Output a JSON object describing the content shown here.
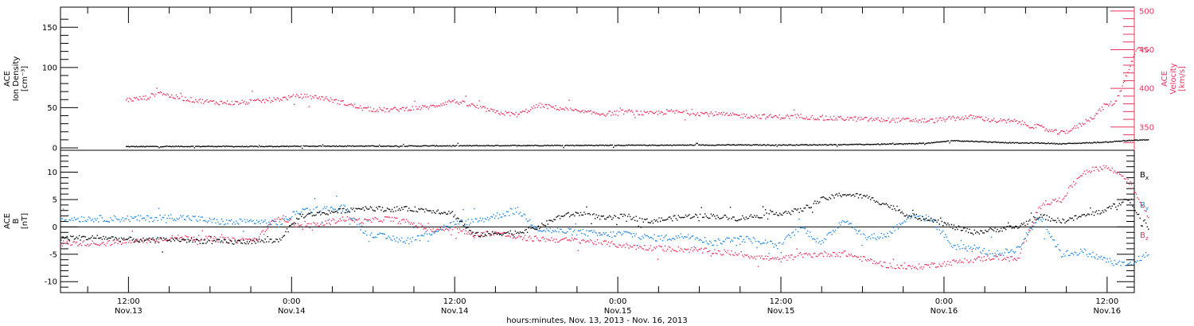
{
  "chart_data": [
    {
      "type": "scatter",
      "panel": "top",
      "ylabel_left": [
        "ACE",
        "Ion Density",
        "[cm⁻³]"
      ],
      "ylabel_right": [
        "ACE",
        "Velocity",
        "[km/s]"
      ],
      "ylim_left": [
        -3,
        175
      ],
      "ylim_right": [
        320,
        505
      ],
      "yticks_left": [
        0,
        50,
        100,
        150
      ],
      "yticks_right": [
        350,
        400,
        450,
        500
      ],
      "colors": {
        "density": "#000000",
        "velocity": "#e8345f",
        "right_axis": "#e8345f"
      },
      "series": [
        {
          "name": "",
          "axis": "left",
          "color": "#000000",
          "x": [
            6,
            10,
            14,
            18,
            22,
            26,
            30,
            34,
            38,
            42,
            46,
            50,
            54,
            58,
            62,
            66,
            70,
            74,
            78,
            80,
            82,
            84,
            86,
            88,
            90,
            92,
            94,
            96,
            98,
            100
          ],
          "y": [
            1.5,
            1.7,
            1.8,
            1.6,
            2,
            2.2,
            2.1,
            2.4,
            2.6,
            2.9,
            3,
            3.1,
            3.2,
            3.4,
            3.6,
            3.5,
            3.8,
            4.2,
            5,
            6,
            9,
            8,
            7,
            6,
            6,
            5,
            6,
            7,
            9,
            10
          ]
        },
        {
          "name": "",
          "axis": "right",
          "color": "#e8345f",
          "x": [
            6,
            8,
            9,
            10,
            12,
            14,
            16,
            18,
            20,
            22,
            24,
            26,
            28,
            30,
            32,
            34,
            36,
            38,
            40,
            42,
            44,
            46,
            48,
            50,
            52,
            54,
            56,
            58,
            60,
            62,
            64,
            66,
            68,
            70,
            72,
            74,
            76,
            78,
            80,
            82,
            84,
            86,
            88,
            89,
            90,
            91,
            92,
            93,
            94,
            95,
            96,
            97,
            98,
            99,
            100
          ],
          "y": [
            385,
            388,
            396,
            390,
            385,
            382,
            381,
            383,
            386,
            390,
            388,
            381,
            373,
            372,
            374,
            376,
            384,
            377,
            369,
            366,
            378,
            374,
            369,
            367,
            370,
            367,
            370,
            368,
            367,
            365,
            364,
            363,
            364,
            361,
            361,
            360,
            359,
            359,
            358,
            361,
            363,
            358,
            357,
            352,
            350,
            345,
            342,
            347,
            355,
            364,
            378,
            382,
            418,
            452,
            450
          ]
        }
      ]
    },
    {
      "type": "scatter",
      "panel": "bottom",
      "ylabel_left": [
        "ACE",
        "B",
        "[nT]"
      ],
      "ylim": [
        -12,
        14
      ],
      "yticks": [
        -10,
        -5,
        0,
        5,
        10
      ],
      "zero_line": true,
      "legend": {
        "position": "right",
        "entries": [
          "Bₓ",
          "Bᵧ",
          "B_z"
        ]
      },
      "series": [
        {
          "name": "Bₓ",
          "display_main": "B",
          "display_sub": "x",
          "color": "#000000",
          "x": [
            0,
            4,
            8,
            10,
            12,
            14,
            16,
            18,
            20,
            22,
            24,
            26,
            28,
            30,
            32,
            34,
            36,
            38,
            40,
            42,
            44,
            46,
            48,
            50,
            52,
            54,
            56,
            58,
            60,
            62,
            64,
            66,
            68,
            70,
            72,
            74,
            76,
            78,
            80,
            82,
            84,
            86,
            88,
            90,
            92,
            94,
            96,
            98,
            100
          ],
          "y": [
            -2,
            -2,
            -2.5,
            -2.3,
            -2.5,
            -2.7,
            -2.8,
            -2.6,
            -2.5,
            2,
            2.5,
            3,
            3.5,
            3.2,
            3.3,
            3,
            2.5,
            -1.5,
            -1.2,
            -1,
            0,
            2,
            2.5,
            1.5,
            2,
            1,
            1.5,
            2,
            2,
            1.5,
            2,
            2.5,
            3,
            5,
            6,
            5.5,
            4,
            2,
            1.5,
            0,
            -1,
            -0.5,
            0,
            2,
            1,
            2,
            3,
            5,
            0
          ]
        },
        {
          "name": "Bᵧ",
          "display_main": "B",
          "display_sub": "y",
          "color": "#1f86e2",
          "x": [
            0,
            4,
            8,
            10,
            12,
            14,
            16,
            18,
            20,
            22,
            24,
            26,
            28,
            30,
            32,
            34,
            36,
            38,
            40,
            42,
            44,
            46,
            48,
            50,
            52,
            54,
            56,
            58,
            60,
            62,
            64,
            66,
            68,
            70,
            72,
            74,
            76,
            78,
            80,
            82,
            84,
            86,
            88,
            90,
            92,
            94,
            96,
            98,
            100
          ],
          "y": [
            1.5,
            1.5,
            1.5,
            1.8,
            1.6,
            1,
            0.8,
            1,
            0.5,
            3,
            3.2,
            3.5,
            -1,
            -2,
            -2.5,
            -1,
            0.5,
            1,
            2,
            3,
            -0.5,
            -0.8,
            -1,
            -1.5,
            -1.2,
            -2,
            -2,
            -1.5,
            -3,
            -2,
            -2.5,
            -3.5,
            0,
            -3,
            1.5,
            -2,
            -1.5,
            2,
            1.5,
            -3.5,
            -4,
            -5,
            -4,
            2,
            -5,
            -4.5,
            -6,
            -7,
            -5
          ]
        },
        {
          "name": "B_z",
          "display_main": "B",
          "display_sub": "z",
          "color": "#e8345f",
          "x": [
            0,
            4,
            8,
            10,
            12,
            14,
            16,
            18,
            20,
            22,
            24,
            26,
            28,
            30,
            32,
            34,
            36,
            38,
            40,
            42,
            44,
            46,
            48,
            50,
            52,
            54,
            56,
            58,
            60,
            62,
            64,
            66,
            68,
            70,
            72,
            74,
            76,
            78,
            80,
            82,
            84,
            86,
            88,
            90,
            92,
            94,
            96,
            98,
            100
          ],
          "y": [
            -3,
            -3,
            -2.5,
            -2,
            -2,
            -2.2,
            -2.5,
            -2.3,
            2,
            0,
            0.5,
            1.5,
            1,
            1.5,
            0.8,
            -0.5,
            -0.3,
            -1.5,
            -1,
            -2,
            -2.2,
            -2.4,
            -2.5,
            -3,
            -3.5,
            -3.8,
            -4,
            -4.2,
            -4.5,
            -4.8,
            -5.5,
            -6,
            -5.2,
            -5,
            -4.8,
            -6,
            -7,
            -7.5,
            -7,
            -6.5,
            -6,
            -5.5,
            -6,
            4,
            5,
            10,
            11,
            9,
            2
          ]
        }
      ]
    }
  ],
  "x_axis": {
    "label": "hours:minutes, Nov. 13, 2013 - Nov. 16, 2013",
    "ticks": [
      {
        "t": 12,
        "top": "12:00",
        "bottom": "Nov.13"
      },
      {
        "t": 24,
        "top": "0:00",
        "bottom": "Nov.14"
      },
      {
        "t": 36,
        "top": "12:00",
        "bottom": "Nov.14"
      },
      {
        "t": 48,
        "top": "0:00",
        "bottom": "Nov.15"
      },
      {
        "t": 60,
        "top": "12:00",
        "bottom": "Nov.15"
      },
      {
        "t": 72,
        "top": "0:00",
        "bottom": "Nov.16"
      },
      {
        "t": 84,
        "top": "12:00",
        "bottom": "Nov.16"
      }
    ],
    "range_hours": [
      7,
      86
    ],
    "data_hour_offset": 7,
    "data_hour_scale": 0.8
  }
}
